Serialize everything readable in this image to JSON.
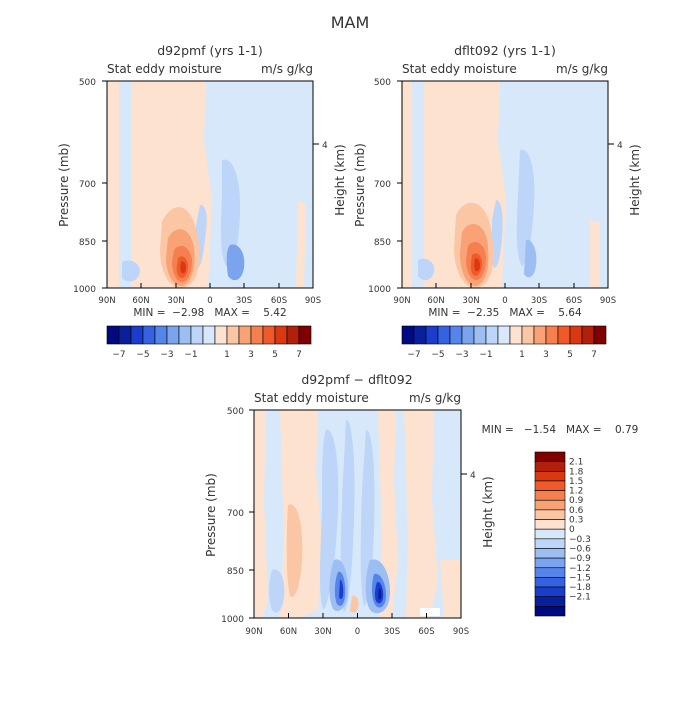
{
  "figure": {
    "title": "MAM"
  },
  "chart_data": [
    {
      "type": "heatmap",
      "title": "d92pmf (yrs 1-1)",
      "subtitle_left": "Stat eddy moisture",
      "subtitle_right": "m/s g/kg",
      "ylabel": "Pressure (mb)",
      "ylabel_right": "Height (km)",
      "yticks": [
        "500",
        "700",
        "850",
        "1000"
      ],
      "yticks_right": [
        "4"
      ],
      "xticks": [
        "90N",
        "60N",
        "30N",
        "0",
        "30S",
        "60S",
        "90S"
      ],
      "stats": "MIN =  −2.98   MAX =    5.42",
      "colorbar_labels": [
        "−7",
        "−5",
        "−3",
        "−1",
        "1",
        "3",
        "5",
        "7"
      ]
    },
    {
      "type": "heatmap",
      "title": "dflt092 (yrs 1-1)",
      "subtitle_left": "Stat eddy moisture",
      "subtitle_right": "m/s g/kg",
      "ylabel": "Pressure (mb)",
      "ylabel_right": "Height (km)",
      "yticks": [
        "500",
        "700",
        "850",
        "1000"
      ],
      "yticks_right": [
        "4"
      ],
      "xticks": [
        "90N",
        "60N",
        "30N",
        "0",
        "30S",
        "60S",
        "90S"
      ],
      "stats": "MIN =  −2.35   MAX =    5.64",
      "colorbar_labels": [
        "−7",
        "−5",
        "−3",
        "−1",
        "1",
        "3",
        "5",
        "7"
      ]
    },
    {
      "type": "heatmap",
      "title": "d92pmf − dflt092",
      "subtitle_left": "Stat eddy moisture",
      "subtitle_right": "m/s g/kg",
      "ylabel": "Pressure (mb)",
      "ylabel_right": "Height (km)",
      "yticks": [
        "500",
        "700",
        "850",
        "1000"
      ],
      "yticks_right": [
        "4"
      ],
      "xticks": [
        "90N",
        "60N",
        "30N",
        "0",
        "30S",
        "60S",
        "90S"
      ],
      "stats": "MIN =   −1.54   MAX =    0.79",
      "colorbar_labels": [
        "2.1",
        "1.8",
        "1.5",
        "1.2",
        "0.9",
        "0.6",
        "0.3",
        "0",
        "−0.3",
        "−0.6",
        "−0.9",
        "−1.2",
        "−1.5",
        "−1.8",
        "−2.1"
      ]
    }
  ],
  "colors": {
    "warm": [
      "#fde3cf",
      "#fbc6a4",
      "#f8a276",
      "#f57f4e",
      "#f05a2a",
      "#d93811",
      "#b0200a",
      "#800000"
    ],
    "cool": [
      "#d7e8fb",
      "#bcd5f8",
      "#9dbef3",
      "#7aa4ee",
      "#5585ea",
      "#3462e0",
      "#1a3dcc",
      "#0a1f9c",
      "#000a80"
    ]
  }
}
